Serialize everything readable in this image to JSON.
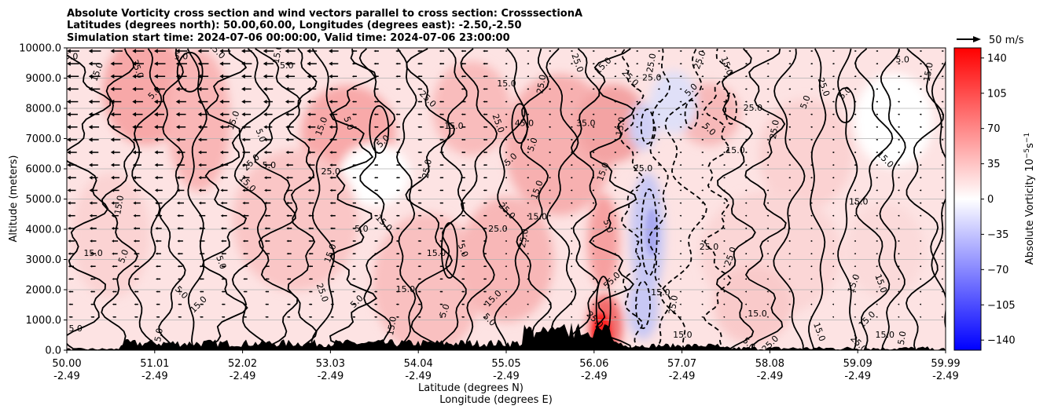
{
  "chart_data": {
    "type": "heatmap",
    "title_lines": [
      "Absolute Vorticity cross section and wind vectors parallel to cross section: CrosssectionA",
      "Latitudes (degrees north): 50.00,60.00, Longitudes (degrees east): -2.50,-2.50",
      "Simulation start time: 2024-07-06 00:00:00, Valid time: 2024-07-06 23:00:00"
    ],
    "ylabel": "Altitude (meters)",
    "xlabel_lines": [
      "Latitude (degrees N)",
      "Longitude (degrees E)"
    ],
    "xlim": [
      50.0,
      59.99
    ],
    "ylim": [
      0,
      10000
    ],
    "grid": "horizontal",
    "x_ticks": [
      {
        "lat": "50.00",
        "lon": "-2.49"
      },
      {
        "lat": "51.01",
        "lon": "-2.49"
      },
      {
        "lat": "52.02",
        "lon": "-2.49"
      },
      {
        "lat": "53.03",
        "lon": "-2.49"
      },
      {
        "lat": "54.04",
        "lon": "-2.49"
      },
      {
        "lat": "55.05",
        "lon": "-2.49"
      },
      {
        "lat": "56.06",
        "lon": "-2.49"
      },
      {
        "lat": "57.07",
        "lon": "-2.49"
      },
      {
        "lat": "58.08",
        "lon": "-2.49"
      },
      {
        "lat": "59.09",
        "lon": "-2.49"
      },
      {
        "lat": "59.99",
        "lon": "-2.49"
      }
    ],
    "y_ticks": [
      "0.0",
      "1000.0",
      "2000.0",
      "3000.0",
      "4000.0",
      "5000.0",
      "6000.0",
      "7000.0",
      "8000.0",
      "9000.0",
      "10000.0"
    ],
    "y_tick_values": [
      0,
      1000,
      2000,
      3000,
      4000,
      5000,
      6000,
      7000,
      8000,
      9000,
      10000
    ],
    "colorbar": {
      "label": "Absolute Vorticity 10",
      "label_sup": "−5",
      "label_unit": "s",
      "label_sup2": "−1",
      "range": [
        -150,
        150
      ],
      "ticks": [
        "140",
        "105",
        "70",
        "35",
        "0",
        "−35",
        "−70",
        "−105",
        "−140"
      ],
      "tick_values": [
        140,
        105,
        70,
        35,
        0,
        -35,
        -70,
        -105,
        -140
      ],
      "cmap": "bwr"
    },
    "quiver_key": "50 m/s",
    "contour_label_values": [
      "5.0",
      "15.0",
      "25.0",
      "35.0",
      "45.0",
      "55.0"
    ],
    "contour_labels": [
      {
        "text": "5.0",
        "x": 50.05,
        "y": 9700
      },
      {
        "text": "15.0",
        "x": 50.35,
        "y": 9200
      },
      {
        "text": "35.0",
        "x": 50.8,
        "y": 9300
      },
      {
        "text": "5.0",
        "x": 51.0,
        "y": 8500
      },
      {
        "text": "15.0",
        "x": 51.7,
        "y": 9900
      },
      {
        "text": "5.0",
        "x": 51.3,
        "y": 9700
      },
      {
        "text": "15.0",
        "x": 52.4,
        "y": 9800
      },
      {
        "text": "5.0",
        "x": 52.5,
        "y": 9400
      },
      {
        "text": "15.0",
        "x": 51.9,
        "y": 7600
      },
      {
        "text": "5.0",
        "x": 52.2,
        "y": 7100
      },
      {
        "text": "25.0",
        "x": 52.1,
        "y": 6200
      },
      {
        "text": "15.0",
        "x": 52.05,
        "y": 5500
      },
      {
        "text": "5.0",
        "x": 52.3,
        "y": 6100
      },
      {
        "text": "15.0",
        "x": 50.6,
        "y": 4800
      },
      {
        "text": "15.0",
        "x": 50.3,
        "y": 3200
      },
      {
        "text": "5.0",
        "x": 50.65,
        "y": 3100
      },
      {
        "text": "5.0",
        "x": 51.75,
        "y": 2900
      },
      {
        "text": "15.0",
        "x": 51.5,
        "y": 1500
      },
      {
        "text": "5.0",
        "x": 51.3,
        "y": 1900
      },
      {
        "text": "5.0",
        "x": 50.1,
        "y": 700
      },
      {
        "text": "5.0",
        "x": 51.05,
        "y": 500
      },
      {
        "text": "25.0",
        "x": 53.0,
        "y": 5900
      },
      {
        "text": "15.0",
        "x": 52.9,
        "y": 7400
      },
      {
        "text": "5.0",
        "x": 53.2,
        "y": 7500
      },
      {
        "text": "5.0",
        "x": 53.6,
        "y": 6900
      },
      {
        "text": "25.0",
        "x": 54.1,
        "y": 8300
      },
      {
        "text": "15.0",
        "x": 54.4,
        "y": 7400
      },
      {
        "text": "25.0",
        "x": 54.1,
        "y": 6000
      },
      {
        "text": "5.0",
        "x": 53.35,
        "y": 4000
      },
      {
        "text": "15.0",
        "x": 53.0,
        "y": 3200
      },
      {
        "text": "25.0",
        "x": 52.9,
        "y": 1900
      },
      {
        "text": "5.0",
        "x": 53.3,
        "y": 1600
      },
      {
        "text": "15.0",
        "x": 53.6,
        "y": 4200
      },
      {
        "text": "15.0",
        "x": 53.85,
        "y": 2000
      },
      {
        "text": "15.0",
        "x": 53.7,
        "y": 800
      },
      {
        "text": "15.0",
        "x": 54.2,
        "y": 3200
      },
      {
        "text": "5.0",
        "x": 54.3,
        "y": 1300
      },
      {
        "text": "5.0",
        "x": 54.5,
        "y": 3300
      },
      {
        "text": "15.0",
        "x": 54.85,
        "y": 1700
      },
      {
        "text": "5.0",
        "x": 54.8,
        "y": 1000
      },
      {
        "text": "15.0",
        "x": 55.0,
        "y": 8800
      },
      {
        "text": "25.0",
        "x": 55.4,
        "y": 8800
      },
      {
        "text": "45.0",
        "x": 55.2,
        "y": 7500
      },
      {
        "text": "5.0",
        "x": 55.3,
        "y": 6800
      },
      {
        "text": "25.0",
        "x": 54.9,
        "y": 7500
      },
      {
        "text": "5.0",
        "x": 55.05,
        "y": 6300
      },
      {
        "text": "25.0",
        "x": 55.0,
        "y": 4600
      },
      {
        "text": "25.0",
        "x": 54.9,
        "y": 4000
      },
      {
        "text": "25.0",
        "x": 55.2,
        "y": 3700
      },
      {
        "text": "15.0",
        "x": 55.35,
        "y": 4400
      },
      {
        "text": "15.0",
        "x": 55.35,
        "y": 5300
      },
      {
        "text": "25.0",
        "x": 55.8,
        "y": 9500
      },
      {
        "text": "15.0",
        "x": 56.1,
        "y": 9400
      },
      {
        "text": "25.0",
        "x": 56.4,
        "y": 9000
      },
      {
        "text": "35.0",
        "x": 55.9,
        "y": 7500
      },
      {
        "text": "15.0",
        "x": 56.3,
        "y": 7400
      },
      {
        "text": "25.0",
        "x": 56.55,
        "y": 6000
      },
      {
        "text": "15.0",
        "x": 56.1,
        "y": 5900
      },
      {
        "text": "5.0",
        "x": 56.15,
        "y": 4100
      },
      {
        "text": "55.0",
        "x": 56.2,
        "y": 2300
      },
      {
        "text": "25.0",
        "x": 56.0,
        "y": 1000
      },
      {
        "text": "15.0",
        "x": 57.0,
        "y": 500
      },
      {
        "text": "25.0",
        "x": 56.65,
        "y": 9500
      },
      {
        "text": "25.0",
        "x": 56.65,
        "y": 9000
      },
      {
        "text": "25.0",
        "x": 57.2,
        "y": 9600
      },
      {
        "text": "15.0",
        "x": 57.5,
        "y": 9400
      },
      {
        "text": "5.0",
        "x": 57.1,
        "y": 8600
      },
      {
        "text": "5.0",
        "x": 57.3,
        "y": 7300
      },
      {
        "text": "25.0",
        "x": 57.8,
        "y": 8000
      },
      {
        "text": "25.0",
        "x": 58.05,
        "y": 7300
      },
      {
        "text": "15.0",
        "x": 57.6,
        "y": 6600
      },
      {
        "text": "5.0",
        "x": 58.4,
        "y": 8200
      },
      {
        "text": "25.0",
        "x": 58.6,
        "y": 8700
      },
      {
        "text": "5.0",
        "x": 58.85,
        "y": 8500
      },
      {
        "text": "15.0",
        "x": 59.3,
        "y": 6300
      },
      {
        "text": "5.0",
        "x": 59.5,
        "y": 9600
      },
      {
        "text": "15.0",
        "x": 59.8,
        "y": 9200
      },
      {
        "text": "15.0",
        "x": 59.0,
        "y": 4900
      },
      {
        "text": "15.0",
        "x": 58.95,
        "y": 2200
      },
      {
        "text": "15.0",
        "x": 59.25,
        "y": 2200
      },
      {
        "text": "15.0",
        "x": 59.1,
        "y": 1000
      },
      {
        "text": "25.0",
        "x": 59.0,
        "y": 200
      },
      {
        "text": "15.0",
        "x": 59.3,
        "y": 500
      },
      {
        "text": "5.0",
        "x": 59.5,
        "y": 400
      },
      {
        "text": "25.0",
        "x": 57.3,
        "y": 3400
      },
      {
        "text": "25.0",
        "x": 57.55,
        "y": 3100
      },
      {
        "text": "15.0",
        "x": 58.55,
        "y": 600
      },
      {
        "text": "25.0",
        "x": 58.0,
        "y": 200
      },
      {
        "text": "5.0",
        "x": 57.75,
        "y": 200
      },
      {
        "text": "15.0",
        "x": 57.85,
        "y": 1200
      },
      {
        "text": "25.0",
        "x": 56.9,
        "y": 1500
      },
      {
        "text": "15.0",
        "x": 56.75,
        "y": 1900
      }
    ]
  }
}
